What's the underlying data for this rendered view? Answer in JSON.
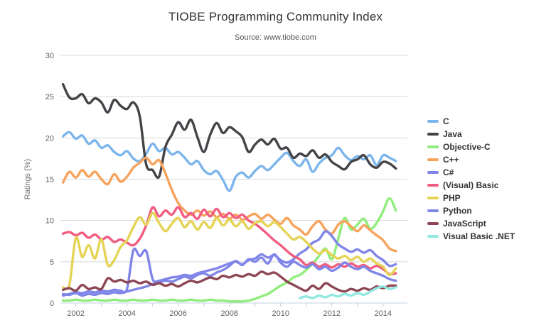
{
  "title": "TIOBE Programming Community Index",
  "subtitle": "Source: www.tiobe.com",
  "colors": {
    "background": "#FFFFFF",
    "grid": "#D8D8D8",
    "axis_line": "#C0D0E0",
    "tick": "#C0D0E0",
    "axis_text": "#606060",
    "axis_title_text": "#707070",
    "title_text": "#333333",
    "subtitle_text": "#555555",
    "legend_text": "#333333"
  },
  "chart_data": {
    "type": "line",
    "title": "TIOBE Programming Community Index",
    "subtitle": "Source: www.tiobe.com",
    "xlabel": "",
    "ylabel": "Ratings (%)",
    "xlim": [
      2001.4,
      2014.95
    ],
    "ylim": [
      0,
      30
    ],
    "y_ticks": [
      0,
      5,
      10,
      15,
      20,
      25,
      30
    ],
    "x_tick_years": [
      2002,
      2003,
      2004,
      2005,
      2006,
      2007,
      2008,
      2009,
      2010,
      2011,
      2012,
      2013,
      2014
    ],
    "x_label_years": [
      2002,
      2004,
      2006,
      2008,
      2010,
      2012,
      2014
    ],
    "grid": "horizontal-only",
    "legend_position": "right",
    "x": [
      2001.5,
      2001.75,
      2002,
      2002.25,
      2002.5,
      2002.75,
      2003,
      2003.25,
      2003.5,
      2003.75,
      2004,
      2004.25,
      2004.5,
      2004.75,
      2005,
      2005.25,
      2005.5,
      2005.75,
      2006,
      2006.25,
      2006.5,
      2006.75,
      2007,
      2007.25,
      2007.5,
      2007.75,
      2008,
      2008.25,
      2008.5,
      2008.75,
      2009,
      2009.25,
      2009.5,
      2009.75,
      2010,
      2010.25,
      2010.5,
      2010.75,
      2011,
      2011.25,
      2011.5,
      2011.75,
      2012,
      2012.25,
      2012.5,
      2012.75,
      2013,
      2013.25,
      2013.5,
      2013.75,
      2014,
      2014.25,
      2014.5
    ],
    "series": [
      {
        "name": "C",
        "color": "#7cb5ec",
        "values": [
          20.2,
          20.7,
          19.9,
          20.3,
          19.3,
          19.7,
          18.8,
          19.1,
          18.3,
          17.9,
          18.4,
          17.5,
          17.2,
          18.1,
          19.3,
          18.4,
          18.8,
          18.0,
          18.3,
          17.6,
          16.8,
          17.2,
          16.1,
          15.6,
          16.0,
          14.9,
          13.6,
          15.3,
          15.8,
          15.2,
          16.0,
          16.6,
          16.1,
          16.8,
          17.6,
          18.2,
          17.2,
          16.6,
          17.4,
          15.9,
          16.9,
          17.6,
          17.9,
          18.8,
          17.9,
          17.3,
          17.8,
          17.4,
          17.9,
          16.7,
          17.9,
          17.6,
          17.2
        ]
      },
      {
        "name": "Java",
        "color": "#434348",
        "values": [
          26.5,
          24.9,
          24.8,
          25.3,
          24.2,
          24.8,
          24.3,
          23.1,
          24.6,
          23.9,
          23.5,
          24.3,
          22.6,
          16.8,
          16.1,
          15.3,
          18.9,
          20.4,
          21.9,
          21.0,
          22.2,
          20.1,
          18.3,
          20.4,
          21.8,
          20.6,
          21.3,
          20.8,
          20.1,
          18.3,
          19.2,
          19.8,
          19.2,
          19.9,
          18.7,
          18.8,
          17.6,
          18.1,
          17.8,
          18.5,
          17.6,
          18.0,
          17.1,
          16.6,
          16.2,
          17.1,
          17.4,
          17.9,
          16.8,
          16.4,
          17.1,
          16.9,
          16.3
        ]
      },
      {
        "name": "Objective-C",
        "color": "#90ed7d",
        "values": [
          0.3,
          0.3,
          0.4,
          0.3,
          0.3,
          0.4,
          0.3,
          0.3,
          0.4,
          0.3,
          0.3,
          0.4,
          0.3,
          0.3,
          0.4,
          0.3,
          0.3,
          0.4,
          0.3,
          0.3,
          0.4,
          0.3,
          0.3,
          0.4,
          0.3,
          0.3,
          0.2,
          0.2,
          0.2,
          0.3,
          0.5,
          0.8,
          1.1,
          1.6,
          2.1,
          2.5,
          3.1,
          3.4,
          4.0,
          4.8,
          5.7,
          6.6,
          5.3,
          7.8,
          10.3,
          8.9,
          9.5,
          10.2,
          9.0,
          9.7,
          11.1,
          12.7,
          11.2
        ]
      },
      {
        "name": "C++",
        "color": "#f7a35c",
        "values": [
          14.6,
          15.9,
          15.2,
          16.1,
          15.3,
          15.9,
          15.0,
          14.4,
          15.6,
          14.7,
          15.3,
          16.4,
          17.0,
          17.6,
          16.8,
          17.3,
          15.7,
          13.7,
          12.1,
          11.2,
          10.7,
          11.2,
          10.6,
          11.1,
          10.4,
          10.8,
          10.2,
          10.7,
          10.1,
          10.5,
          10.8,
          10.2,
          10.7,
          10.1,
          9.6,
          10.3,
          9.4,
          8.9,
          8.3,
          9.3,
          9.9,
          8.9,
          8.4,
          9.5,
          9.9,
          9.3,
          8.7,
          9.4,
          8.8,
          8.2,
          7.6,
          6.6,
          6.3
        ]
      },
      {
        "name": "C#",
        "color": "#8085e9",
        "values": [
          0.9,
          1.1,
          1.3,
          1.2,
          1.4,
          1.3,
          1.5,
          1.4,
          1.6,
          1.5,
          1.7,
          6.4,
          5.7,
          6.3,
          2.9,
          2.7,
          2.9,
          3.1,
          3.2,
          3.4,
          3.3,
          3.6,
          3.8,
          4.0,
          4.2,
          4.5,
          4.8,
          5.0,
          4.7,
          5.2,
          5.4,
          5.9,
          5.5,
          5.8,
          5.2,
          4.9,
          5.3,
          6.0,
          6.5,
          7.3,
          7.7,
          8.7,
          8.1,
          7.1,
          6.6,
          6.2,
          6.5,
          6.1,
          6.4,
          5.7,
          5.2,
          4.5,
          4.7
        ]
      },
      {
        "name": "(Visual) Basic",
        "color": "#f15c80",
        "values": [
          8.4,
          8.6,
          8.2,
          8.5,
          7.9,
          8.3,
          7.7,
          8.0,
          7.4,
          7.7,
          7.3,
          7.0,
          7.8,
          9.4,
          11.6,
          10.5,
          11.2,
          10.7,
          11.6,
          10.4,
          10.9,
          10.2,
          11.3,
          10.5,
          11.4,
          10.4,
          10.9,
          10.3,
          10.7,
          10.0,
          9.6,
          9.0,
          8.3,
          7.6,
          7.0,
          6.3,
          5.7,
          5.3,
          4.6,
          4.9,
          4.4,
          4.7,
          4.3,
          4.7,
          4.4,
          4.8,
          4.4,
          4.6,
          4.2,
          4.5,
          4.1,
          3.5,
          3.6
        ]
      },
      {
        "name": "PHP",
        "color": "#e4d354",
        "values": [
          1.9,
          2.2,
          7.9,
          5.6,
          7.0,
          5.4,
          7.7,
          4.6,
          5.2,
          6.8,
          7.6,
          9.2,
          10.4,
          9.5,
          10.9,
          9.7,
          8.7,
          9.6,
          10.3,
          9.2,
          9.9,
          8.9,
          9.8,
          9.1,
          10.3,
          9.4,
          10.1,
          9.3,
          9.9,
          9.0,
          9.7,
          9.9,
          9.3,
          9.8,
          9.2,
          8.4,
          7.7,
          8.0,
          7.4,
          6.6,
          6.0,
          6.4,
          5.8,
          5.4,
          5.7,
          5.2,
          5.6,
          5.0,
          5.4,
          4.8,
          4.4,
          3.4,
          4.2
        ]
      },
      {
        "name": "Python",
        "color": "#8085e8",
        "values": [
          1.1,
          1.0,
          1.2,
          0.9,
          1.1,
          1.0,
          1.2,
          1.1,
          1.3,
          1.2,
          1.4,
          1.6,
          1.8,
          2.0,
          2.3,
          2.5,
          2.7,
          2.6,
          2.9,
          3.2,
          3.0,
          3.4,
          3.6,
          3.3,
          3.7,
          4.0,
          4.5,
          5.1,
          4.6,
          5.3,
          5.0,
          5.5,
          4.8,
          5.9,
          4.9,
          4.4,
          5.0,
          4.6,
          4.3,
          4.7,
          4.1,
          4.4,
          3.9,
          4.3,
          4.9,
          4.4,
          4.1,
          4.4,
          3.9,
          3.6,
          3.3,
          2.9,
          2.7
        ]
      },
      {
        "name": "JavaScript",
        "color": "#8d4653",
        "values": [
          1.6,
          1.8,
          1.5,
          2.2,
          1.7,
          1.9,
          1.7,
          3.0,
          2.6,
          2.8,
          2.5,
          2.7,
          2.4,
          2.6,
          2.2,
          2.4,
          2.1,
          2.3,
          2.0,
          2.4,
          2.7,
          2.5,
          2.8,
          3.1,
          2.9,
          3.3,
          3.1,
          3.4,
          3.2,
          3.5,
          3.3,
          3.8,
          3.5,
          3.7,
          3.2,
          2.6,
          2.2,
          1.8,
          1.5,
          2.1,
          1.7,
          2.4,
          2.0,
          1.6,
          1.4,
          1.7,
          1.5,
          1.8,
          1.6,
          2.0,
          1.8,
          2.1,
          2.1
        ]
      },
      {
        "name": "Visual Basic .NET",
        "color": "#91e8e1",
        "values": [
          null,
          null,
          null,
          null,
          null,
          null,
          null,
          null,
          null,
          null,
          null,
          null,
          null,
          null,
          null,
          null,
          null,
          null,
          null,
          null,
          null,
          null,
          null,
          null,
          null,
          null,
          null,
          null,
          null,
          null,
          null,
          null,
          null,
          null,
          null,
          null,
          null,
          0.6,
          0.8,
          0.6,
          0.9,
          0.7,
          1.0,
          0.8,
          1.1,
          0.9,
          1.2,
          1.0,
          1.4,
          1.8,
          2.0,
          1.7,
          1.9
        ]
      }
    ]
  }
}
